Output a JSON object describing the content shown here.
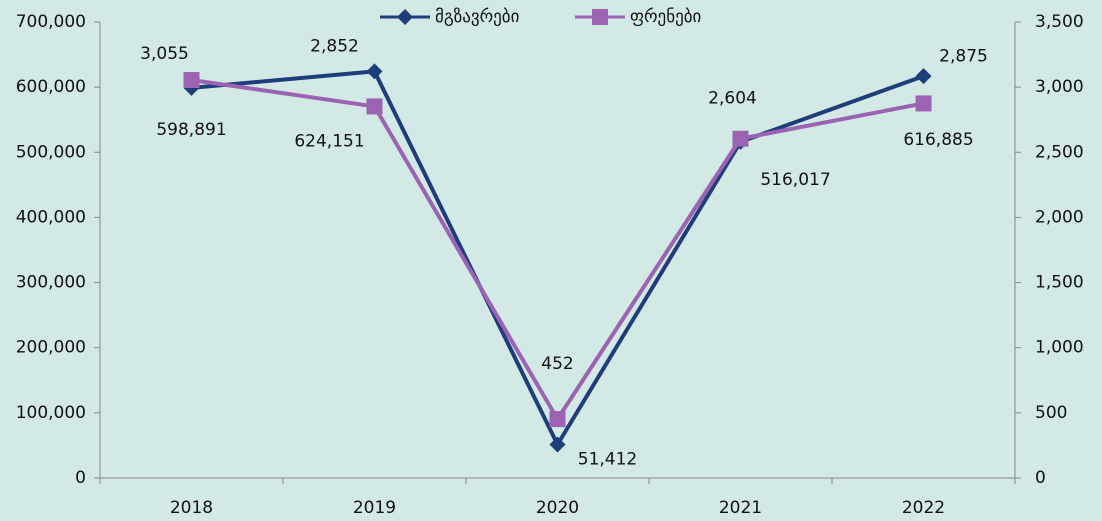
{
  "chart_data": {
    "type": "line",
    "categories": [
      "2018",
      "2019",
      "2020",
      "2021",
      "2022"
    ],
    "series": [
      {
        "name": "მგზავრები",
        "color": "#1f3d7a",
        "marker": "diamond",
        "values": [
          598891,
          624151,
          51412,
          516017,
          616885
        ],
        "value_labels": [
          "598,891",
          "624,151",
          "51,412",
          "516,017",
          "616,885"
        ]
      },
      {
        "name": "ფრენები",
        "color": "#9c63b3",
        "marker": "square",
        "axis": "y2",
        "values": [
          3055,
          2852,
          452,
          2604,
          2875
        ],
        "value_labels": [
          "3,055",
          "2,852",
          "452",
          "2,604",
          "2,875"
        ]
      }
    ],
    "ylim": [
      0,
      700000
    ],
    "yticks": [
      0,
      {
        "value": 100000,
        "label": "100,000"
      },
      {
        "value": 200000,
        "label": "200,000"
      },
      {
        "value": 300000,
        "label": "300,000"
      },
      {
        "value": 400000,
        "label": "400,000"
      },
      {
        "value": 500000,
        "label": "500,000"
      },
      {
        "value": 600000,
        "label": "600,000"
      },
      {
        "value": 700000,
        "label": "700,000"
      }
    ],
    "y2lim": [
      0,
      3500
    ],
    "y2ticks": [
      0,
      500,
      {
        "value": 1000,
        "label": "1,000"
      },
      {
        "value": 1500,
        "label": "1,500"
      },
      {
        "value": 2000,
        "label": "2,000"
      },
      {
        "value": 2500,
        "label": "2,500"
      },
      {
        "value": 3000,
        "label": "3,000"
      },
      {
        "value": 3500,
        "label": "3,500"
      }
    ],
    "legend": "top"
  }
}
